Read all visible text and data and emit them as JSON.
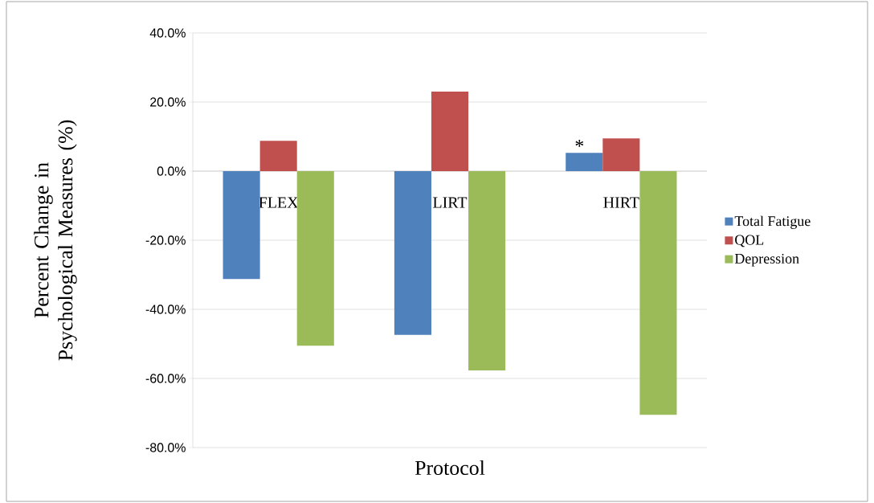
{
  "chart_data": {
    "type": "bar",
    "xlabel": "Protocol",
    "ylabel": "Percent Change in Psychological Measures (%)",
    "categories": [
      "FLEX",
      "LIRT",
      "HIRT"
    ],
    "series": [
      {
        "name": "Total Fatigue",
        "color": "#4f81bd",
        "values": [
          -31.2,
          -47.4,
          5.3
        ]
      },
      {
        "name": "QOL",
        "color": "#c0504d",
        "values": [
          8.8,
          23.0,
          9.5
        ]
      },
      {
        "name": "Depression",
        "color": "#9bbb59",
        "values": [
          -50.5,
          -57.7,
          -70.5
        ]
      }
    ],
    "ylim": [
      -80,
      40
    ],
    "yticks": [
      {
        "value": -80,
        "label": "-80.0%"
      },
      {
        "value": -60,
        "label": "-60.0%"
      },
      {
        "value": -40,
        "label": "-40.0%"
      },
      {
        "value": -20,
        "label": "-20.0%"
      },
      {
        "value": 0,
        "label": "0.0%"
      },
      {
        "value": 20,
        "label": "20.0%"
      },
      {
        "value": 40,
        "label": "40.0%"
      }
    ],
    "grid": "y",
    "legend": "right",
    "annotations": [
      "*"
    ]
  }
}
